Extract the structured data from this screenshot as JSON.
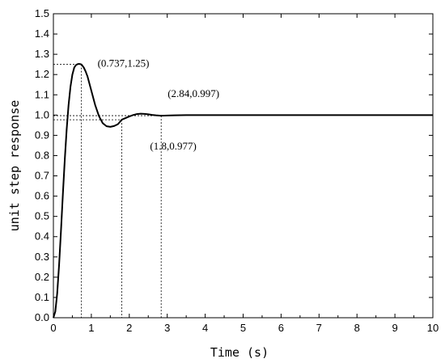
{
  "chart_data": {
    "type": "line",
    "title": "",
    "xlabel": "Time (s)",
    "ylabel": "unit step response",
    "xlim": [
      0,
      10
    ],
    "ylim": [
      0,
      1.5
    ],
    "xticks": [
      "0",
      "1",
      "2",
      "3",
      "4",
      "5",
      "6",
      "7",
      "8",
      "9",
      "10"
    ],
    "yticks": [
      "0.0",
      "0.1",
      "0.2",
      "0.3",
      "0.4",
      "0.5",
      "0.6",
      "0.7",
      "0.8",
      "0.9",
      "1.0",
      "1.1",
      "1.2",
      "1.3",
      "1.4",
      "1.5"
    ],
    "grid": false,
    "legend": "none",
    "series": [
      {
        "color": "#000000",
        "x": [
          0,
          0.05,
          0.1,
          0.15,
          0.2,
          0.25,
          0.3,
          0.35,
          0.4,
          0.45,
          0.5,
          0.55,
          0.6,
          0.65,
          0.7,
          0.737,
          0.8,
          0.85,
          0.9,
          1.0,
          1.1,
          1.2,
          1.3,
          1.4,
          1.5,
          1.6,
          1.7,
          1.8,
          1.9,
          2.0,
          2.1,
          2.2,
          2.3,
          2.4,
          2.5,
          2.6,
          2.7,
          2.84,
          3.0,
          3.2,
          3.5,
          4.0,
          5.0,
          6.0,
          7.0,
          8.0,
          9.0,
          10.0
        ],
        "y": [
          0.0,
          0.03,
          0.12,
          0.26,
          0.43,
          0.61,
          0.78,
          0.93,
          1.05,
          1.14,
          1.2,
          1.235,
          1.248,
          1.252,
          1.252,
          1.25,
          1.235,
          1.215,
          1.19,
          1.12,
          1.05,
          0.995,
          0.96,
          0.945,
          0.942,
          0.946,
          0.955,
          0.977,
          0.985,
          0.993,
          1.0,
          1.005,
          1.007,
          1.006,
          1.004,
          1.001,
          0.999,
          0.997,
          0.998,
          0.999,
          1.0,
          1.0,
          1.0,
          1.0,
          1.0,
          1.0,
          1.0,
          1.0
        ]
      }
    ],
    "annotations": [
      {
        "x": 0.737,
        "y": 1.25,
        "text": "(0.737,1.25)"
      },
      {
        "x": 1.8,
        "y": 0.977,
        "text": "(1.8,0.977)"
      },
      {
        "x": 2.84,
        "y": 0.997,
        "text": "(2.84,0.997)"
      }
    ]
  }
}
